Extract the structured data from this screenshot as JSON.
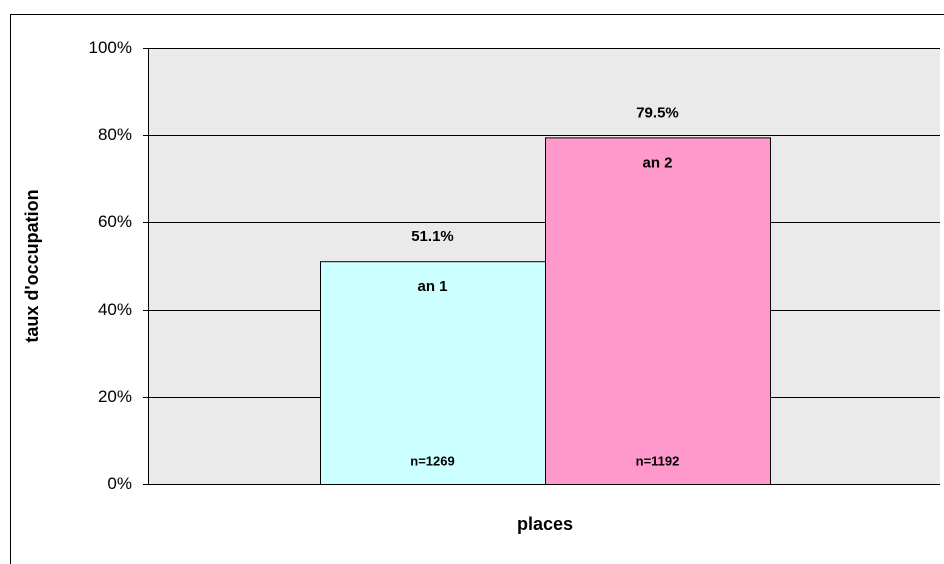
{
  "chart_data": {
    "type": "bar",
    "x_label": "places",
    "y_label": "taux d'occupation",
    "series": [
      {
        "name": "an 1",
        "color": "#ccffff",
        "values": [
          51.1
        ],
        "value_labels": [
          "51.1%"
        ],
        "annotation": "n=1269"
      },
      {
        "name": "an 2",
        "color": "#ff99cc",
        "values": [
          79.5
        ],
        "value_labels": [
          "79.5%"
        ],
        "annotation": "n=1192"
      }
    ],
    "ylim": [
      0,
      100
    ],
    "yticks": [
      {
        "value": 0,
        "label": "0%"
      },
      {
        "value": 20,
        "label": "20%"
      },
      {
        "value": 40,
        "label": "40%"
      },
      {
        "value": 60,
        "label": "60%"
      },
      {
        "value": 80,
        "label": "80%"
      },
      {
        "value": 100,
        "label": "100%"
      }
    ],
    "grid": true
  }
}
